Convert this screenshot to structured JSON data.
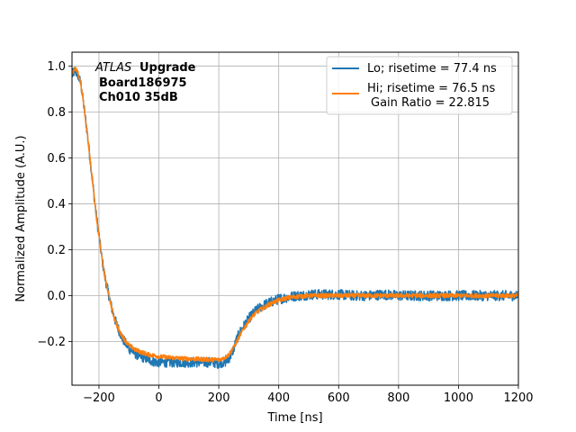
{
  "chart_data": {
    "type": "line",
    "xlabel": "Time [ns]",
    "ylabel": "Normalized Amplitude (A.U.)",
    "xlim": [
      -290,
      1200
    ],
    "ylim": [
      -0.39,
      1.06
    ],
    "xticks": [
      -200,
      0,
      200,
      400,
      600,
      800,
      1000,
      1200
    ],
    "yticks": [
      -0.2,
      0.0,
      0.2,
      0.4,
      0.6,
      0.8,
      1.0
    ],
    "xtick_labels": [
      "−200",
      "0",
      "200",
      "400",
      "600",
      "800",
      "1000",
      "1200"
    ],
    "ytick_labels": [
      "−0.2",
      "0.0",
      "0.2",
      "0.4",
      "0.6",
      "0.8",
      "1.0"
    ],
    "grid": true,
    "legend_position": "top-right",
    "annotation": {
      "italic": "ATLAS",
      "bold1": "Upgrade",
      "line2": "Board186975",
      "line3": "Ch010 35dB"
    },
    "series": [
      {
        "name": "Lo; risetime = 77.4 ns",
        "color": "#1f77b4",
        "noise": 0.014,
        "x": [
          -290,
          -280,
          -270,
          -260,
          -250,
          -240,
          -230,
          -220,
          -210,
          -200,
          -190,
          -180,
          -170,
          -160,
          -150,
          -140,
          -130,
          -120,
          -110,
          -100,
          -90,
          -80,
          -70,
          -60,
          -50,
          -40,
          -30,
          -20,
          -10,
          0,
          20,
          40,
          60,
          80,
          100,
          120,
          140,
          160,
          180,
          200,
          210,
          220,
          230,
          240,
          250,
          260,
          270,
          280,
          290,
          300,
          320,
          340,
          360,
          380,
          400,
          420,
          440,
          460,
          480,
          500,
          550,
          600,
          650,
          700,
          750,
          800,
          850,
          900,
          950,
          1000,
          1050,
          1100,
          1150,
          1200
        ],
        "y": [
          0.96,
          0.98,
          0.96,
          0.92,
          0.82,
          0.72,
          0.6,
          0.48,
          0.36,
          0.26,
          0.16,
          0.08,
          0.02,
          -0.04,
          -0.09,
          -0.13,
          -0.16,
          -0.19,
          -0.21,
          -0.23,
          -0.24,
          -0.25,
          -0.26,
          -0.265,
          -0.27,
          -0.275,
          -0.28,
          -0.285,
          -0.29,
          -0.29,
          -0.29,
          -0.29,
          -0.29,
          -0.29,
          -0.29,
          -0.29,
          -0.29,
          -0.29,
          -0.29,
          -0.295,
          -0.29,
          -0.29,
          -0.28,
          -0.26,
          -0.23,
          -0.19,
          -0.16,
          -0.14,
          -0.12,
          -0.1,
          -0.07,
          -0.05,
          -0.035,
          -0.025,
          -0.015,
          -0.01,
          -0.005,
          0.0,
          0.0,
          0.005,
          0.005,
          0.005,
          0.0,
          0.0,
          0.005,
          0.0,
          0.0,
          0.0,
          0.0,
          0.0,
          0.0,
          0.0,
          0.0,
          0.0
        ]
      },
      {
        "name": "Hi; risetime = 76.5 ns",
        "name2": "Gain Ratio = 22.815",
        "color": "#ff7f0e",
        "noise": 0.006,
        "x": [
          -290,
          -280,
          -270,
          -260,
          -250,
          -240,
          -230,
          -220,
          -210,
          -200,
          -190,
          -180,
          -170,
          -160,
          -150,
          -140,
          -130,
          -120,
          -110,
          -100,
          -90,
          -80,
          -70,
          -60,
          -50,
          -40,
          -30,
          -20,
          -10,
          0,
          20,
          40,
          60,
          80,
          100,
          120,
          140,
          160,
          180,
          200,
          210,
          220,
          230,
          240,
          250,
          260,
          270,
          280,
          290,
          300,
          320,
          340,
          360,
          380,
          400,
          420,
          440,
          460,
          480,
          500,
          550,
          600,
          650,
          700,
          750,
          800,
          850,
          900,
          950,
          1000,
          1050,
          1100,
          1150,
          1200
        ],
        "y": [
          0.97,
          0.99,
          0.97,
          0.92,
          0.82,
          0.72,
          0.6,
          0.48,
          0.36,
          0.26,
          0.16,
          0.08,
          0.02,
          -0.04,
          -0.09,
          -0.13,
          -0.16,
          -0.18,
          -0.2,
          -0.215,
          -0.225,
          -0.235,
          -0.24,
          -0.245,
          -0.25,
          -0.255,
          -0.258,
          -0.26,
          -0.262,
          -0.265,
          -0.268,
          -0.27,
          -0.272,
          -0.274,
          -0.275,
          -0.276,
          -0.277,
          -0.278,
          -0.279,
          -0.279,
          -0.276,
          -0.27,
          -0.26,
          -0.245,
          -0.225,
          -0.2,
          -0.175,
          -0.15,
          -0.13,
          -0.11,
          -0.08,
          -0.06,
          -0.045,
          -0.03,
          -0.02,
          -0.013,
          -0.008,
          -0.004,
          -0.002,
          0.0,
          0.0,
          0.0,
          0.0,
          0.0,
          0.0,
          0.0,
          0.0,
          0.0,
          0.0,
          0.0,
          0.0,
          0.0,
          0.0,
          0.0
        ]
      }
    ]
  }
}
